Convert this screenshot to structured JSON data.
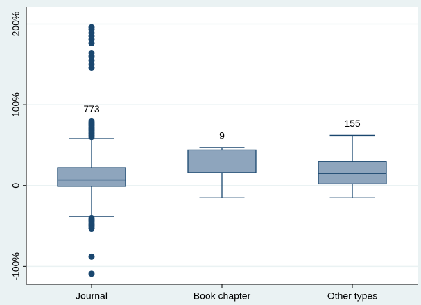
{
  "chart_data": {
    "type": "box",
    "categories": [
      "Journal",
      "Book chapter",
      "Other types"
    ],
    "boxes": [
      {
        "whisker_low": -38,
        "q1": -1,
        "median": 7,
        "q3": 22,
        "whisker_high": 58,
        "outliers": [
          60,
          62,
          64,
          66,
          68,
          70,
          72,
          74,
          76,
          78,
          80,
          146,
          150,
          155,
          160,
          164,
          176,
          181,
          185,
          189,
          193,
          196,
          -40,
          -42,
          -44,
          -46,
          -48,
          -50,
          -53,
          -88,
          -109
        ],
        "count": 773
      },
      {
        "whisker_low": -15,
        "q1": 16,
        "median": 16,
        "q3": 44,
        "whisker_high": 47,
        "outliers": [],
        "count": 9
      },
      {
        "whisker_low": -15,
        "q1": 2,
        "median": 15,
        "q3": 30,
        "whisker_high": 62,
        "outliers": [],
        "count": 155
      }
    ],
    "box_color": "#8ea5bd",
    "line_color": "#1a476f",
    "ylim": [
      -122,
      221
    ],
    "yticks": [
      {
        "value": -100,
        "label": "-100%"
      },
      0,
      {
        "value": 100,
        "label": "100%"
      },
      {
        "value": 200,
        "label": "200%"
      }
    ],
    "grid": true
  }
}
